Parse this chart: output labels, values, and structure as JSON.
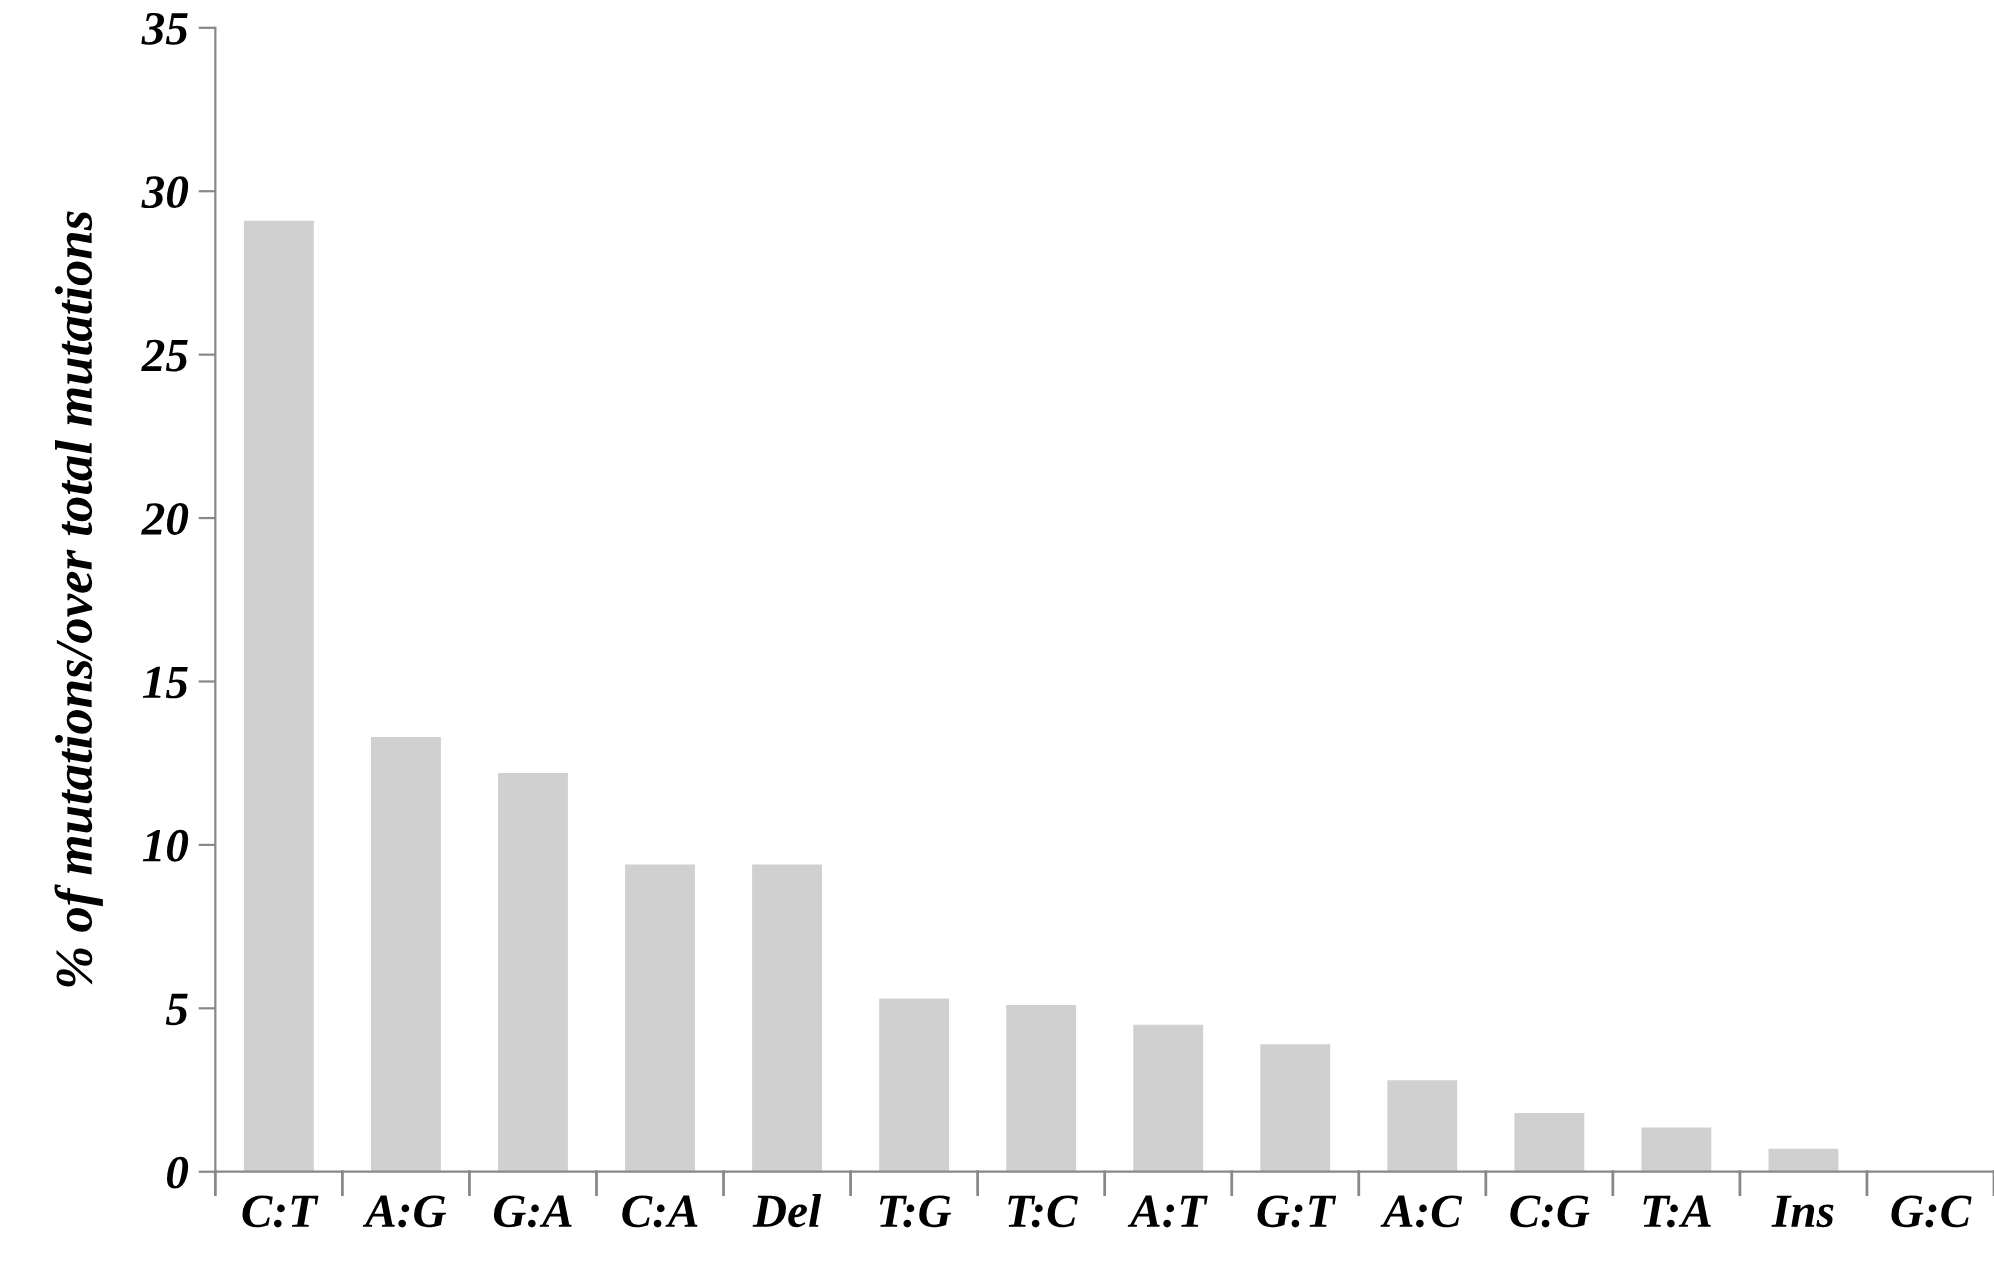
{
  "chart_data": {
    "type": "bar",
    "ylabel": "% of mutations/over total mutations",
    "categories": [
      "C:T",
      "A:G",
      "G:A",
      "C:A",
      "Del",
      "T:G",
      "T:C",
      "A:T",
      "G:T",
      "A:C",
      "C:G",
      "T:A",
      "Ins",
      "G:C"
    ],
    "values": [
      29.1,
      13.3,
      12.2,
      9.4,
      9.4,
      5.3,
      5.1,
      4.5,
      3.9,
      2.8,
      1.8,
      1.35,
      0.7,
      null
    ],
    "color": "#d0d0d0",
    "ylim": [
      0,
      35
    ],
    "yticks": [
      0,
      5,
      10,
      15,
      20,
      25,
      30,
      35
    ],
    "grid": false,
    "legend": false
  }
}
